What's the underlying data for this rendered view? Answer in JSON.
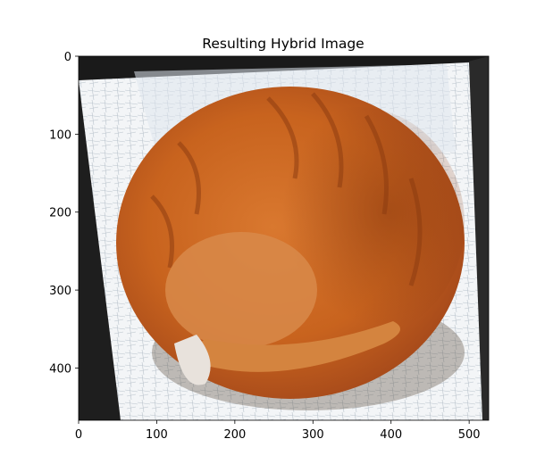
{
  "chart_data": {
    "type": "image",
    "title": "Resulting Hybrid Image",
    "xlabel": "",
    "ylabel": "",
    "xlim": [
      0,
      525
    ],
    "ylim": [
      0,
      467
    ],
    "y_inverted": true,
    "x_ticks": [
      0,
      100,
      200,
      300,
      400,
      500
    ],
    "x_tick_labels": [
      "0",
      "100",
      "200",
      "300",
      "400",
      "500"
    ],
    "y_ticks": [
      0,
      100,
      200,
      300,
      400
    ],
    "y_tick_labels": [
      "0",
      "100",
      "200",
      "300",
      "400"
    ],
    "image_description": "hybrid image of a curled-up sleeping orange tabby cat on a pale sketchy background with dark rotated border",
    "colors": {
      "cat_main": "#c8631e",
      "cat_dark": "#8a3a10",
      "cat_light": "#e8a060",
      "background": "#eef2f5",
      "border_dark": "#1a1a1a"
    }
  }
}
